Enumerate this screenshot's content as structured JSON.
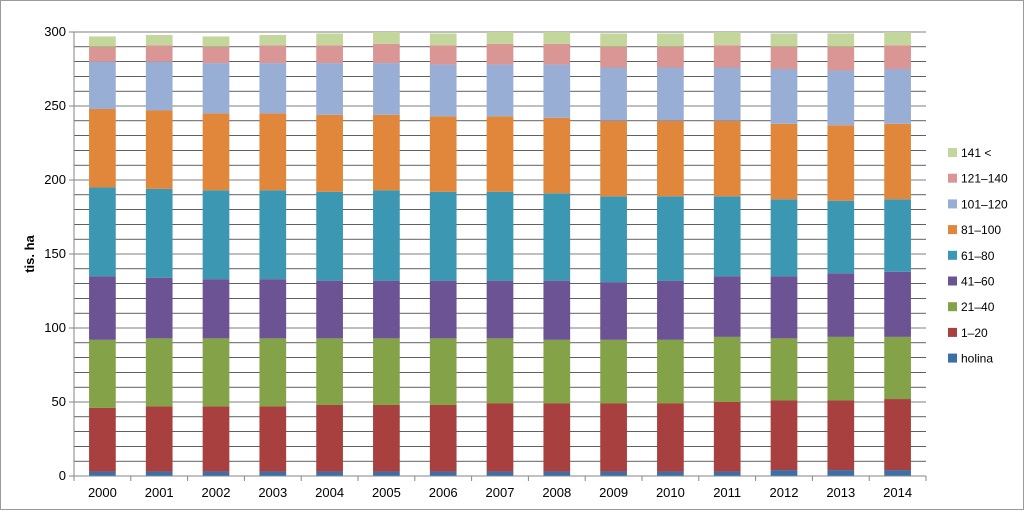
{
  "chart_data": {
    "type": "bar",
    "stacked": true,
    "title": "",
    "xlabel": "",
    "ylabel": "tis. ha",
    "ylim": [
      0,
      300
    ],
    "yticks": [
      0,
      50,
      100,
      150,
      200,
      250,
      300
    ],
    "grid": true,
    "legend_position": "right",
    "categories": [
      "2000",
      "2001",
      "2002",
      "2003",
      "2004",
      "2005",
      "2006",
      "2007",
      "2008",
      "2009",
      "2010",
      "2011",
      "2012",
      "2013",
      "2014"
    ],
    "series": [
      {
        "name": "holina",
        "color": "#3c6ea8",
        "values": [
          3,
          3,
          3,
          3,
          3,
          3,
          3,
          3,
          3,
          3,
          3,
          3,
          4,
          4,
          4
        ]
      },
      {
        "name": "1–20",
        "color": "#a8403f",
        "values": [
          43,
          44,
          44,
          44,
          45,
          45,
          45,
          46,
          46,
          46,
          46,
          47,
          47,
          47,
          48
        ]
      },
      {
        "name": "21–40",
        "color": "#84a247",
        "values": [
          46,
          46,
          46,
          46,
          45,
          45,
          45,
          44,
          43,
          43,
          43,
          44,
          42,
          43,
          42
        ]
      },
      {
        "name": "41–60",
        "color": "#6c5393",
        "values": [
          43,
          41,
          40,
          40,
          39,
          39,
          39,
          39,
          40,
          39,
          40,
          41,
          42,
          43,
          44
        ]
      },
      {
        "name": "61–80",
        "color": "#3c97b2",
        "values": [
          60,
          60,
          60,
          60,
          60,
          61,
          60,
          60,
          59,
          58,
          57,
          54,
          52,
          49,
          49
        ]
      },
      {
        "name": "81–100",
        "color": "#e0873c",
        "values": [
          53,
          53,
          52,
          52,
          52,
          51,
          51,
          51,
          51,
          51,
          51,
          51,
          51,
          51,
          51
        ]
      },
      {
        "name": "101–120",
        "color": "#98aed4",
        "values": [
          32,
          33,
          34,
          34,
          35,
          35,
          35,
          35,
          36,
          36,
          36,
          36,
          37,
          37,
          37
        ]
      },
      {
        "name": "121–140",
        "color": "#d99694",
        "values": [
          10,
          11,
          11,
          12,
          12,
          13,
          13,
          14,
          14,
          14,
          14,
          15,
          15,
          16,
          16
        ]
      },
      {
        "name": "141 <",
        "color": "#c3d69b",
        "values": [
          7,
          7,
          7,
          7,
          8,
          8,
          8,
          8,
          8,
          9,
          9,
          9,
          9,
          9,
          9
        ]
      }
    ]
  }
}
